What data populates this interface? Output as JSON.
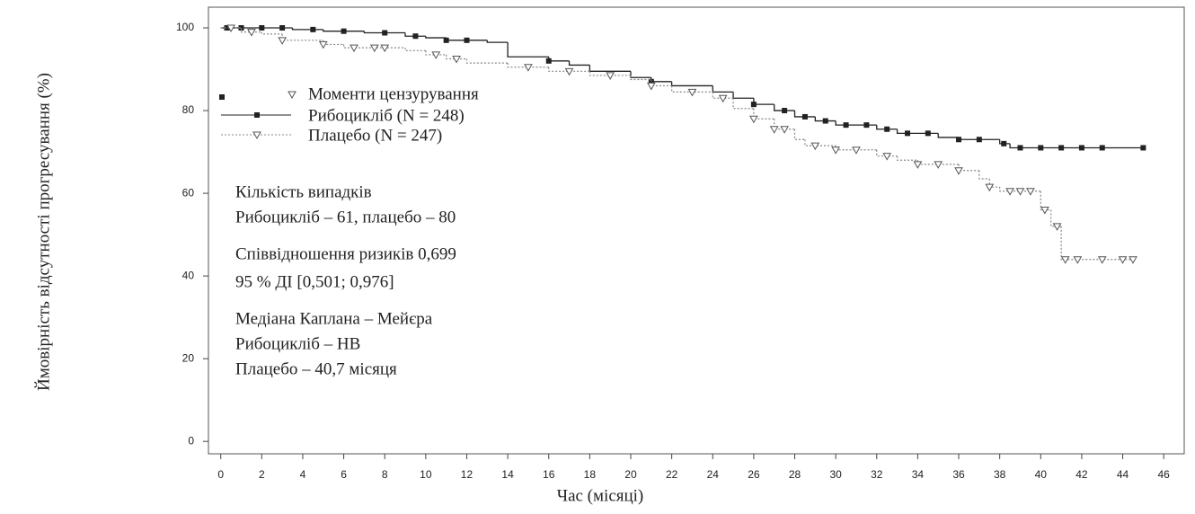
{
  "chart_data": {
    "type": "step",
    "xlabel": "Час (місяці)",
    "ylabel": "Ймовірність відсутності прогресування (%)",
    "xlim": [
      -0.6,
      47
    ],
    "ylim": [
      -3,
      105
    ],
    "xticks": [
      0,
      2,
      4,
      6,
      8,
      10,
      12,
      14,
      16,
      18,
      20,
      22,
      24,
      26,
      28,
      30,
      32,
      34,
      36,
      38,
      40,
      42,
      44,
      46
    ],
    "yticks": [
      0,
      20,
      40,
      60,
      80,
      100
    ],
    "censor_label": "Моменти цензурування",
    "series": [
      {
        "name": "Рибоцикліб (N = 248)",
        "color": "#222222",
        "marker": "square",
        "x": [
          0,
          3.5,
          5,
          7,
          9,
          10,
          11,
          13,
          14,
          16,
          17,
          18,
          20,
          21,
          22,
          24,
          25,
          26,
          27,
          28,
          29,
          30,
          32,
          33,
          35,
          36,
          38,
          38.5,
          45
        ],
        "values": [
          100,
          99.6,
          99.2,
          98.8,
          98,
          97.6,
          97,
          96.5,
          93,
          92,
          91,
          89.5,
          88,
          87,
          86,
          84.5,
          83,
          81.5,
          80,
          78.5,
          77.5,
          76.5,
          75.5,
          74.5,
          73.5,
          73,
          72,
          71,
          71
        ],
        "censored": {
          "x": [
            0.3,
            1,
            2,
            3,
            4.5,
            6,
            8,
            9.5,
            11,
            12,
            16,
            21,
            26,
            27.5,
            28.5,
            29.5,
            30.5,
            31.5,
            32.5,
            33.5,
            34.5,
            36,
            37,
            38.2,
            39,
            40,
            41,
            42,
            43,
            45
          ],
          "values": [
            100,
            100,
            100,
            100,
            99.6,
            99.2,
            98.8,
            98,
            97,
            97,
            92,
            87,
            81.5,
            80,
            78.5,
            77.5,
            76.5,
            76.5,
            75.5,
            74.5,
            74.5,
            73,
            73,
            72,
            71,
            71,
            71,
            71,
            71,
            71
          ]
        }
      },
      {
        "name": "Плацебо (N = 247)",
        "color": "#888888",
        "marker": "triangle",
        "x": [
          0,
          1,
          2,
          3,
          5,
          6,
          9,
          10,
          11,
          12,
          14,
          16,
          18,
          20,
          21,
          22,
          24,
          25,
          26,
          27,
          28,
          28.5,
          30,
          32,
          33,
          34,
          36,
          37,
          37.5,
          38,
          40,
          40.5,
          41,
          44.5
        ],
        "values": [
          100,
          99,
          98.5,
          97,
          96,
          95.2,
          94.5,
          93.5,
          92.5,
          91.5,
          90.5,
          89.5,
          88.5,
          87.5,
          86,
          84.5,
          83,
          80.5,
          78,
          75.5,
          73,
          71.5,
          70.5,
          69,
          68,
          67,
          65.5,
          63.5,
          61.5,
          60.5,
          56,
          52,
          44,
          44
        ],
        "censored": {
          "x": [
            0.5,
            1.5,
            3,
            5,
            6.5,
            7.5,
            8,
            10.5,
            11.5,
            15,
            17,
            19,
            21,
            23,
            24.5,
            26,
            27,
            27.5,
            29,
            30,
            31,
            32.5,
            34,
            35,
            36,
            37.5,
            38.5,
            39,
            39.5,
            40.2,
            40.8,
            41.2,
            41.8,
            43,
            44,
            44.5
          ],
          "values": [
            100,
            99,
            97,
            96,
            95.2,
            95.2,
            95.2,
            93.5,
            92.5,
            90.5,
            89.5,
            88.5,
            86,
            84.5,
            83,
            78,
            75.5,
            75.5,
            71.5,
            70.5,
            70.5,
            69,
            67,
            67,
            65.5,
            61.5,
            60.5,
            60.5,
            60.5,
            56,
            52,
            44,
            44,
            44,
            44,
            44
          ]
        }
      }
    ],
    "annotations": [
      "Кількість випадків",
      "Рибоцикліб – 61, плацебо – 80",
      "Співвідношення ризиків 0,699",
      "95 % ДІ [0,501; 0,976]",
      "Медіана Каплана – Мейєра",
      "Рибоцикліб – НВ",
      "Плацебо – 40,7 місяця"
    ]
  }
}
